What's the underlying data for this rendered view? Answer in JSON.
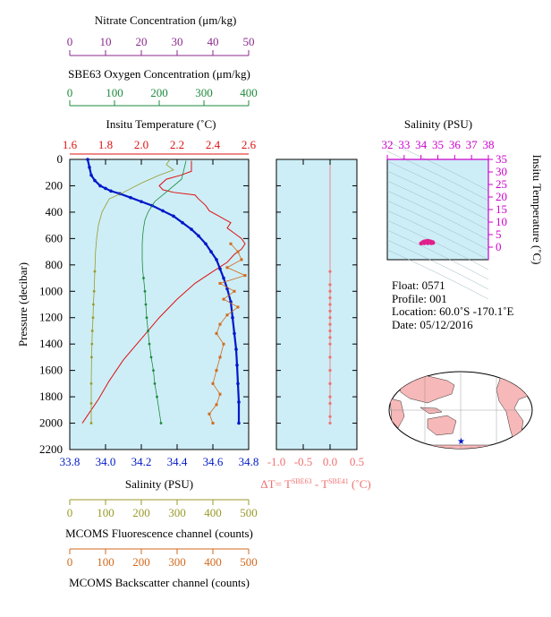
{
  "colors": {
    "nitrate": "#8b2a8e",
    "oxygen": "#1e8a3c",
    "temperature": "#e01010",
    "salinity": "#0018c8",
    "fluorescence": "#9a9a2a",
    "backscatter": "#d2691e",
    "deltaT": "#f07070",
    "ts_axis": "#cc00cc",
    "plot_bg": "#cdeef7"
  },
  "header": {
    "nitrate_label": "Nitrate Concentration (μm/kg)",
    "oxygen_label": "SBE63 Oxygen Concentration (μm/kg)",
    "temperature_label": "Insitu Temperature (˚C)",
    "salinity_top_label": "Salinity (PSU)"
  },
  "info": {
    "float": "Float:  0571",
    "profile": "Profile:  001",
    "location": "Location:  60.0˚S  -170.1˚E",
    "date": "Date:  05/12/2016"
  },
  "chart_data": [
    {
      "type": "line",
      "name": "main-profile",
      "ylabel": "Pressure (decibar)",
      "ylim": [
        2200,
        0
      ],
      "yticks": [
        "0",
        "200",
        "400",
        "600",
        "800",
        "1000",
        "1200",
        "1400",
        "1600",
        "1800",
        "2000",
        "2200"
      ],
      "axes": {
        "nitrate": {
          "label": "Nitrate Concentration (μm/kg)",
          "range": [
            0,
            50
          ],
          "ticks": [
            "0",
            "10",
            "20",
            "30",
            "40",
            "50"
          ]
        },
        "oxygen": {
          "label": "SBE63 Oxygen Concentration (μm/kg)",
          "range": [
            0,
            400
          ],
          "ticks": [
            "0",
            "100",
            "200",
            "300",
            "400"
          ]
        },
        "temperature": {
          "label": "Insitu Temperature (˚C)",
          "range": [
            1.6,
            2.6
          ],
          "ticks": [
            "1.6",
            "1.8",
            "2.0",
            "2.2",
            "2.4",
            "2.6"
          ]
        },
        "salinity": {
          "label": "Salinity (PSU)",
          "range": [
            33.8,
            34.8
          ],
          "ticks": [
            "33.8",
            "34.0",
            "34.2",
            "34.4",
            "34.6",
            "34.8"
          ]
        },
        "fluorescence": {
          "label": "MCOMS Fluorescence channel (counts)",
          "range": [
            0,
            500
          ],
          "ticks": [
            "0",
            "100",
            "200",
            "300",
            "400",
            "500"
          ]
        },
        "backscatter": {
          "label": "MCOMS Backscatter channel (counts)",
          "range": [
            0,
            500
          ],
          "ticks": [
            "0",
            "100",
            "200",
            "300",
            "400",
            "500"
          ]
        }
      },
      "series": [
        {
          "key": "temperature",
          "axis": "temperature",
          "x": [
            2.28,
            2.28,
            2.22,
            2.14,
            2.1,
            2.12,
            2.18,
            2.3,
            2.32,
            2.36,
            2.38,
            2.42,
            2.46,
            2.5,
            2.48,
            2.52,
            2.56,
            2.58,
            2.56,
            2.52,
            2.48,
            2.4,
            2.3,
            2.2,
            2.1,
            2.0,
            1.9,
            1.82,
            1.76,
            1.7,
            1.67
          ],
          "y": [
            10,
            90,
            120,
            150,
            200,
            230,
            250,
            270,
            300,
            350,
            390,
            420,
            450,
            480,
            520,
            560,
            600,
            640,
            680,
            720,
            780,
            850,
            940,
            1060,
            1200,
            1360,
            1520,
            1680,
            1820,
            1940,
            2000
          ]
        },
        {
          "key": "salinity",
          "axis": "salinity",
          "x": [
            33.9,
            33.91,
            33.92,
            33.94,
            33.97,
            34.0,
            34.03,
            34.08,
            34.14,
            34.2,
            34.26,
            34.32,
            34.38,
            34.43,
            34.48,
            34.52,
            34.56,
            34.59,
            34.62,
            34.64,
            34.66,
            34.68,
            34.7,
            34.71,
            34.72,
            34.73,
            34.735,
            34.74,
            34.745,
            34.745
          ],
          "y": [
            0,
            60,
            120,
            160,
            200,
            220,
            240,
            260,
            290,
            320,
            350,
            390,
            430,
            480,
            530,
            580,
            640,
            700,
            760,
            830,
            900,
            980,
            1080,
            1200,
            1320,
            1440,
            1560,
            1700,
            1840,
            2000
          ]
        },
        {
          "key": "oxygen",
          "axis": "oxygen",
          "x": [
            260,
            250,
            215,
            190,
            175,
            168,
            165,
            163,
            162,
            162,
            162,
            163,
            165,
            168,
            170,
            172,
            175,
            178,
            182,
            187,
            190,
            195,
            204
          ],
          "y": [
            10,
            150,
            250,
            320,
            400,
            460,
            520,
            580,
            640,
            700,
            760,
            840,
            900,
            1000,
            1100,
            1200,
            1300,
            1400,
            1500,
            1600,
            1700,
            1800,
            2000
          ]
        },
        {
          "key": "fluorescence",
          "axis": "fluorescence",
          "x": [
            280,
            270,
            290,
            250,
            200,
            150,
            110,
            90,
            80,
            75,
            72,
            70,
            68,
            66,
            65,
            63,
            62,
            61,
            60,
            60,
            60
          ],
          "y": [
            0,
            40,
            80,
            120,
            180,
            250,
            300,
            400,
            500,
            600,
            700,
            850,
            1000,
            1100,
            1200,
            1300,
            1400,
            1500,
            1700,
            1850,
            2000
          ]
        },
        {
          "key": "backscatter",
          "axis": "backscatter",
          "x": [
            450,
            470,
            480,
            440,
            490,
            420,
            460,
            430,
            470,
            440,
            420,
            410,
            430,
            420,
            410,
            400,
            420,
            410,
            390,
            400
          ],
          "y": [
            640,
            700,
            760,
            820,
            880,
            940,
            1000,
            1060,
            1120,
            1180,
            1250,
            1320,
            1400,
            1500,
            1600,
            1700,
            1780,
            1860,
            1930,
            2000
          ]
        },
        {
          "key": "nitrate",
          "axis": "nitrate",
          "x": [],
          "y": []
        }
      ]
    },
    {
      "type": "line",
      "name": "delta-t",
      "xlabel": "ΔT= T^SBE63 - T^SBE41 (˚C)",
      "xlim": [
        -1.0,
        0.5
      ],
      "xticks": [
        "-1.0",
        "-0.5",
        "0.0",
        "0.5"
      ],
      "ylim": [
        2200,
        0
      ],
      "x": [
        0,
        0,
        0,
        0,
        0,
        0,
        0,
        0,
        0,
        0,
        0,
        0,
        0,
        0,
        0,
        0,
        0,
        0
      ],
      "y": [
        850,
        950,
        1000,
        1050,
        1100,
        1150,
        1200,
        1250,
        1300,
        1350,
        1400,
        1500,
        1600,
        1700,
        1800,
        1850,
        1950,
        2000
      ]
    },
    {
      "type": "scatter",
      "name": "ts-diagram",
      "xlabel": "Salinity (PSU)",
      "ylabel": "Insitu Temperature (˚C)",
      "xlim": [
        32,
        38
      ],
      "ylim": [
        -5,
        35
      ],
      "xticks": [
        "32",
        "33",
        "34",
        "35",
        "36",
        "37",
        "38"
      ],
      "yticks": [
        "0",
        "5",
        "10",
        "15",
        "20",
        "25",
        "30",
        "35"
      ],
      "x": [
        34.0,
        34.1,
        34.2,
        34.3,
        34.4,
        34.5,
        34.6,
        34.7,
        34.72,
        34.6,
        34.4,
        34.2,
        34.05
      ],
      "y": [
        1.5,
        2.0,
        2.3,
        2.4,
        2.5,
        2.4,
        2.2,
        2.0,
        1.7,
        1.6,
        1.6,
        1.6,
        1.6
      ]
    }
  ]
}
